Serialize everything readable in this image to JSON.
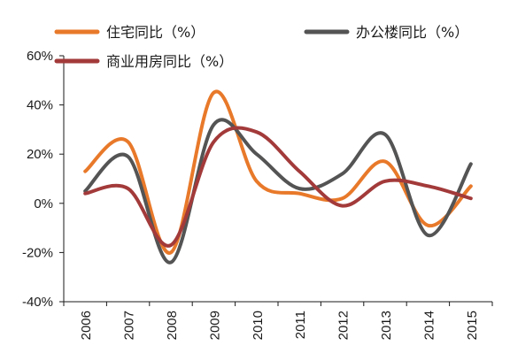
{
  "chart_data": {
    "type": "line",
    "categories": [
      "2006",
      "2007",
      "2008",
      "2009",
      "2010",
      "2011",
      "2012",
      "2013",
      "2014",
      "2015"
    ],
    "ylim": [
      -40,
      60
    ],
    "yticks": [
      -40,
      -20,
      0,
      20,
      40,
      60
    ],
    "ytick_labels": [
      "-40%",
      "-20%",
      "0%",
      "20%",
      "40%",
      "60%"
    ],
    "grid": false,
    "legend_position": "top",
    "series": [
      {
        "name": "住宅同比（%）",
        "color": "#E8792A",
        "values": [
          13,
          25,
          -20,
          45,
          9,
          4,
          2,
          17,
          -9,
          7
        ]
      },
      {
        "name": "办公楼同比（%）",
        "color": "#545454",
        "values": [
          5,
          19,
          -24,
          32,
          20,
          6,
          12,
          28,
          -13,
          16
        ]
      },
      {
        "name": "商业用房同比（%）",
        "color": "#A33A3A",
        "values": [
          4,
          6,
          -17,
          25,
          29,
          13,
          -1,
          9,
          7,
          2
        ]
      }
    ]
  }
}
